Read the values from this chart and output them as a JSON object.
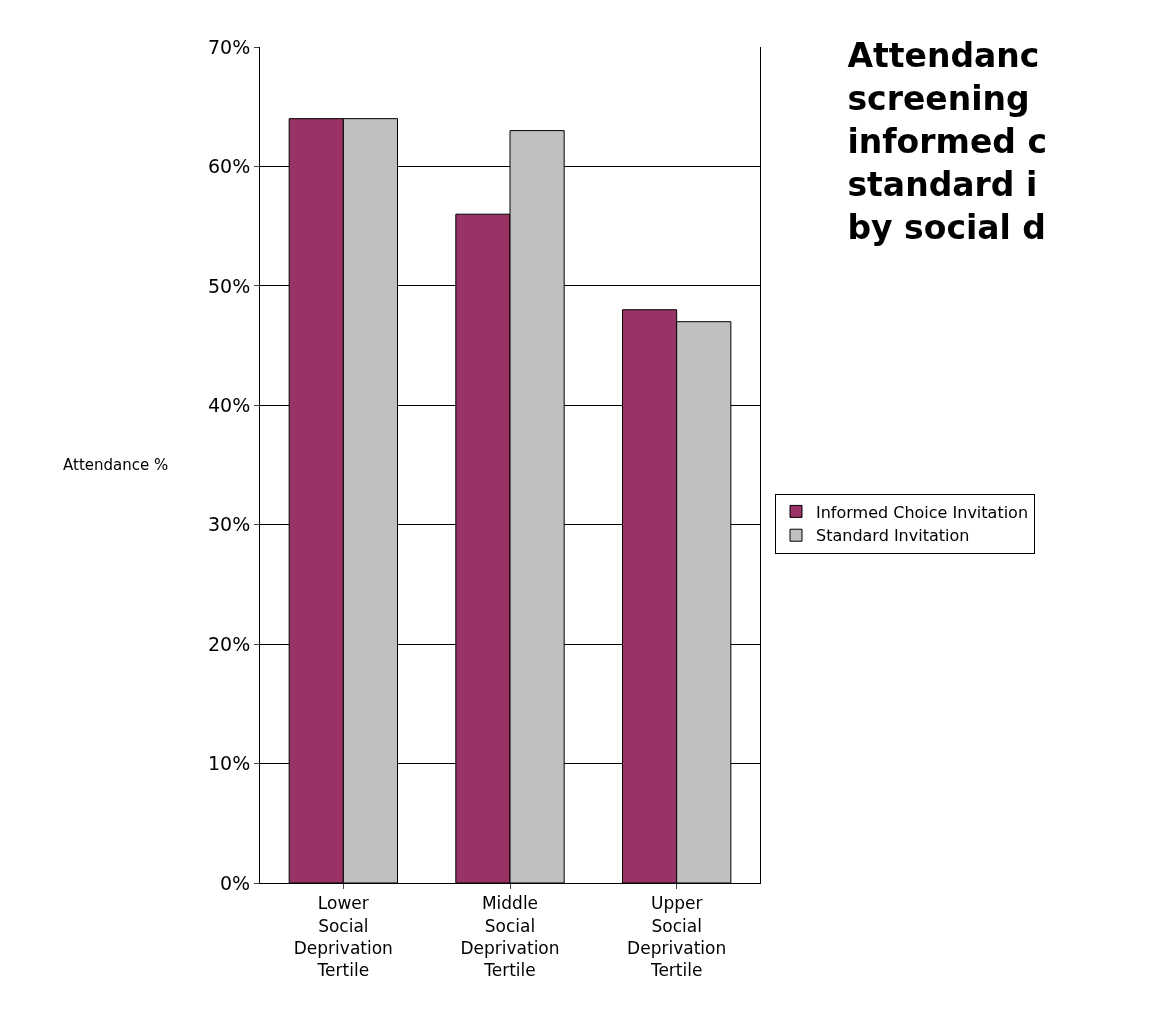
{
  "chart_data": {
    "type": "bar",
    "title": "Attendanc\nscreening\ninformed c\nstandard i\nby social d",
    "ylabel": "Attendance %",
    "categories": [
      "Lower Social Deprivation Tertile",
      "Middle Social Deprivation Tertile",
      "Upper Social Deprivation Tertile"
    ],
    "series": [
      {
        "name": "Informed Choice Invitation",
        "color": "#993366",
        "values": [
          64,
          56,
          48
        ]
      },
      {
        "name": "Standard Invitation",
        "color": "#c0c0c0",
        "values": [
          64,
          63,
          47
        ]
      }
    ],
    "ylim": [
      0,
      70
    ],
    "yticks": [
      {
        "value": 0,
        "label": "0%"
      },
      {
        "value": 10,
        "label": "10%"
      },
      {
        "value": 20,
        "label": "20%"
      },
      {
        "value": 30,
        "label": "30%"
      },
      {
        "value": 40,
        "label": "40%"
      },
      {
        "value": 50,
        "label": "50%"
      },
      {
        "value": 60,
        "label": "60%"
      },
      {
        "value": 70,
        "label": "70%"
      }
    ],
    "grid": "y",
    "legend": "right"
  }
}
